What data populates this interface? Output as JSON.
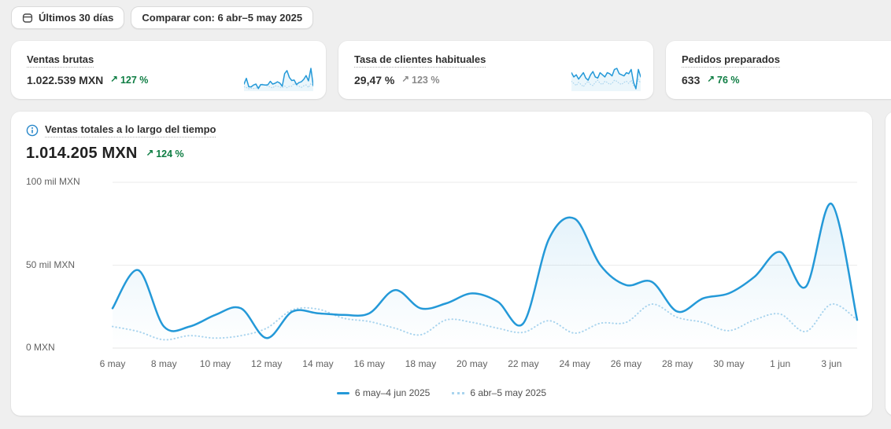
{
  "colors": {
    "accent_line": "#2499d8",
    "comparison_line": "#a9d4ee",
    "positive_green": "#0e7d43",
    "neutral_gray": "#8a8a8a"
  },
  "toolbar": {
    "range_label": "Últimos 30 días",
    "compare_label": "Comparar con: 6 abr–5 may 2025"
  },
  "metric_cards": [
    {
      "title": "Ventas brutas",
      "value": "1.022.539 MXN",
      "delta_arrow": "↗",
      "delta": "127 %",
      "delta_tone": "positive",
      "sparkline": {
        "type": "line",
        "values": [
          24,
          47,
          13,
          13,
          20,
          24,
          6,
          22,
          21,
          20,
          21,
          35,
          24,
          27,
          33,
          28,
          15,
          66,
          78,
          50,
          38,
          40,
          22,
          30,
          33,
          43,
          58,
          37,
          87,
          17
        ],
        "comparison": [
          13,
          10,
          5,
          7.5,
          6,
          7.5,
          12,
          23,
          23.5,
          18,
          16,
          12,
          8,
          17,
          15.5,
          12,
          9.5,
          16.5,
          9,
          15,
          15.5,
          26.5,
          18.5,
          15.5,
          10.5,
          17,
          20.5,
          10,
          26.5,
          17
        ]
      }
    },
    {
      "title": "Tasa de clientes habituales",
      "value": "29,47 %",
      "delta_arrow": "↗",
      "delta": "123 %",
      "delta_tone": "neutral",
      "sparkline": {
        "type": "line",
        "values": [
          30,
          26,
          28,
          24,
          27,
          30,
          25,
          23,
          28,
          31,
          26,
          25,
          30,
          28,
          26,
          30,
          29,
          27,
          33,
          34,
          29,
          28,
          27,
          30,
          29,
          33,
          21,
          15,
          33,
          26
        ],
        "comparison": [
          22,
          20,
          18,
          21,
          19,
          17,
          20,
          22,
          19,
          18,
          21,
          23,
          20,
          19,
          22,
          21,
          19,
          20,
          23,
          22,
          20,
          19,
          21,
          22,
          20,
          23,
          18,
          16,
          24,
          20
        ]
      }
    },
    {
      "title": "Pedidos preparados",
      "value": "633",
      "delta_arrow": "↗",
      "delta": "76 %",
      "delta_tone": "positive"
    }
  ],
  "main_chart": {
    "title": "Ventas totales a lo largo del tiempo",
    "value": "1.014.205 MXN",
    "delta_arrow": "↗",
    "delta": "124 %",
    "delta_tone": "positive"
  },
  "chart_data": {
    "type": "line",
    "title": "Ventas totales a lo largo del tiempo",
    "unit": "mil MXN",
    "ylim": [
      0,
      100
    ],
    "grid": true,
    "legend_position": "bottom",
    "y_ticks": [
      {
        "value": 0,
        "label": "0 MXN"
      },
      {
        "value": 50,
        "label": "50 mil MXN"
      },
      {
        "value": 100,
        "label": "100 mil MXN"
      }
    ],
    "x_tick_labels": [
      "6 may",
      "8 may",
      "10 may",
      "12 may",
      "14 may",
      "16 may",
      "18 may",
      "20 may",
      "22 may",
      "24 may",
      "26 may",
      "28 may",
      "30 may",
      "1 jun",
      "3 jun"
    ],
    "series": [
      {
        "name": "6 may–4 jun 2025",
        "style": "solid",
        "values": [
          24,
          47,
          13,
          13,
          20,
          24,
          6,
          22,
          21,
          20,
          21,
          35,
          24,
          27,
          33,
          28,
          15,
          66,
          78,
          50,
          38,
          40,
          22,
          30,
          33,
          43,
          58,
          37,
          87,
          17
        ]
      },
      {
        "name": "6 abr–5 may 2025",
        "style": "dotted",
        "values": [
          13,
          10,
          5,
          7.5,
          6,
          7.5,
          12,
          23,
          23.5,
          18,
          16,
          12,
          8,
          17,
          15.5,
          12,
          9.5,
          16.5,
          9,
          15,
          15.5,
          26.5,
          18.5,
          15.5,
          10.5,
          17,
          20.5,
          10,
          26.5,
          17
        ]
      }
    ]
  }
}
